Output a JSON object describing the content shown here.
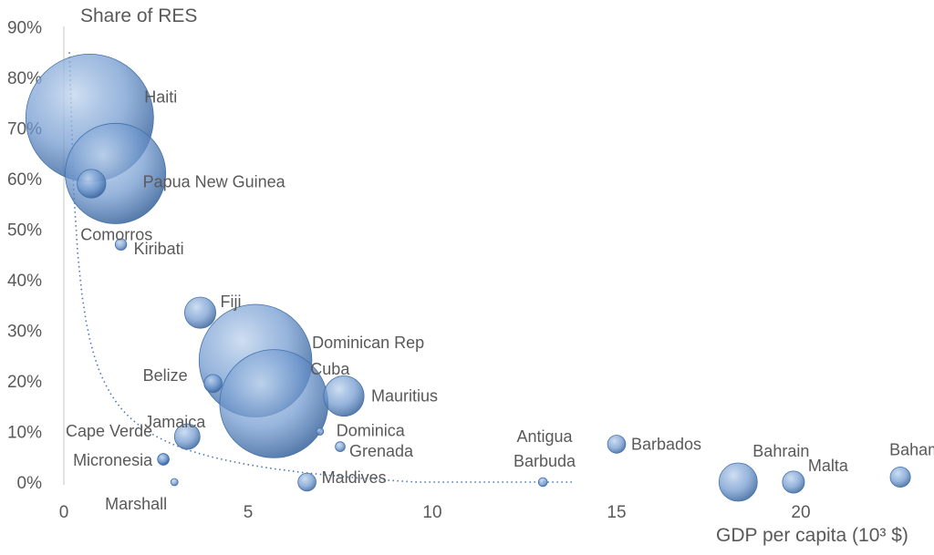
{
  "chart_data": {
    "type": "scatter",
    "subtype": "bubble",
    "title": "",
    "xlabel": "GDP per capita (10³ $)",
    "ylabel": "Share of RES",
    "xlim": [
      0,
      23.5
    ],
    "ylim": [
      0,
      90
    ],
    "x_ticks": [
      0,
      5,
      10,
      15,
      20
    ],
    "x_tick_labels": [
      "0",
      "5",
      "10",
      "15",
      "20"
    ],
    "y_ticks": [
      0,
      10,
      20,
      30,
      40,
      50,
      60,
      70,
      80,
      90
    ],
    "y_tick_labels": [
      "0%",
      "10%",
      "20%",
      "30%",
      "40%",
      "50%",
      "60%",
      "70%",
      "80%",
      "90%"
    ],
    "grid": false,
    "legend": "none",
    "bubble_color": "#4f81bd",
    "trendline": {
      "style": "dotted",
      "color": "#4a78b5",
      "form": "power-like decreasing"
    },
    "points": [
      {
        "label": "Haiti",
        "x": 0.7,
        "y": 72,
        "size": 100
      },
      {
        "label": "Papua New Guinea",
        "x": 1.4,
        "y": 61,
        "size": 62
      },
      {
        "label": "Comorros",
        "x": 0.75,
        "y": 59,
        "size": 5
      },
      {
        "label": "Kiribati",
        "x": 1.55,
        "y": 47,
        "size": 0.8
      },
      {
        "label": "Fiji",
        "x": 3.7,
        "y": 33.5,
        "size": 6
      },
      {
        "label": "Dominican Rep",
        "x": 5.2,
        "y": 24,
        "size": 78
      },
      {
        "label": "Cuba",
        "x": 5.7,
        "y": 15.5,
        "size": 72
      },
      {
        "label": "Belize",
        "x": 4.05,
        "y": 19.5,
        "size": 2
      },
      {
        "label": "Mauritius",
        "x": 7.6,
        "y": 17,
        "size": 10
      },
      {
        "label": "Jamaica",
        "x": 3.35,
        "y": 9,
        "size": 4
      },
      {
        "label": "Dominica",
        "x": 6.95,
        "y": 10,
        "size": 0.3
      },
      {
        "label": "Grenada",
        "x": 7.5,
        "y": 7,
        "size": 0.6
      },
      {
        "label": "Cape Verde",
        "x": 2.7,
        "y": 4.5,
        "size": 0.8
      },
      {
        "label": "Micronesia",
        "x": 2.7,
        "y": 4.5,
        "size": 0.8
      },
      {
        "label": "Marshall",
        "x": 3.0,
        "y": 0,
        "size": 0.3
      },
      {
        "label": "Maldives",
        "x": 6.6,
        "y": 0,
        "size": 2
      },
      {
        "label": "Antigua Barbuda",
        "x": 13.0,
        "y": 0,
        "size": 0.5
      },
      {
        "label": "Barbados",
        "x": 15.0,
        "y": 7.5,
        "size": 2
      },
      {
        "label": "Bahrain",
        "x": 18.3,
        "y": 0,
        "size": 9
      },
      {
        "label": "Malta",
        "x": 19.8,
        "y": 0,
        "size": 3
      },
      {
        "label": "Bahamas",
        "x": 22.7,
        "y": 1,
        "size": 2.5
      }
    ]
  }
}
